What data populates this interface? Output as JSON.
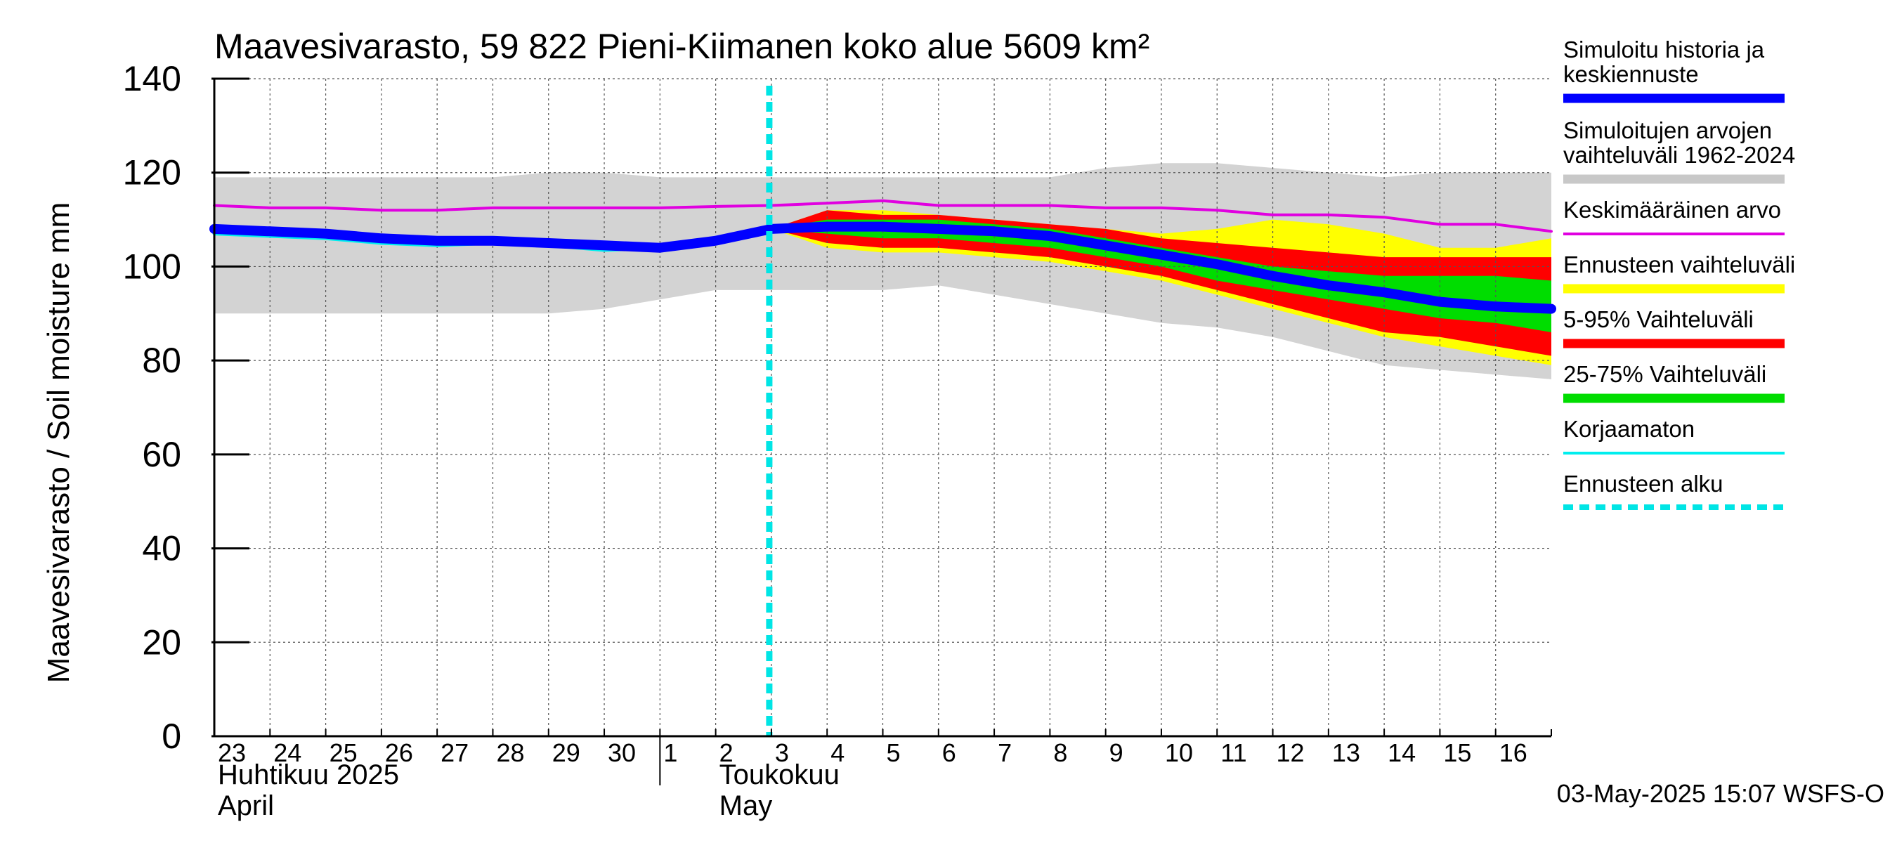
{
  "chart_data": {
    "type": "area",
    "title": "Maavesivarasto, 59 822 Pieni-Kiimanen koko alue 5609 km²",
    "ylabel": "Maavesivarasto / Soil moisture   mm",
    "ylim": [
      0,
      140
    ],
    "yticks": [
      0,
      20,
      40,
      60,
      80,
      100,
      120,
      140
    ],
    "ytick_labels": [
      "0",
      "20",
      "40",
      "60",
      "80",
      "100",
      "120",
      "140"
    ],
    "x_start_day_index": 0,
    "day_labels": [
      "23",
      "24",
      "25",
      "26",
      "27",
      "28",
      "29",
      "30",
      "1",
      "2",
      "3",
      "4",
      "5",
      "6",
      "7",
      "8",
      "9",
      "10",
      "11",
      "12",
      "13",
      "14",
      "15",
      "16"
    ],
    "month_labels": [
      {
        "fi": "Huhtikuu  2025",
        "en": "April",
        "day_index": 0
      },
      {
        "fi": "Toukokuu",
        "en": "May",
        "day_index": 9
      }
    ],
    "month_boundary_day_index": 8,
    "forecast_start_day_index": 10,
    "x_range": [
      0,
      24
    ],
    "timestamp": "03-May-2025 15:07 WSFS-O",
    "legend": [
      {
        "label": "Simuloitu historia ja\nkeskiennuste",
        "color": "#0000ff",
        "style": "thick"
      },
      {
        "label": "Simuloitujen arvojen\nvaihteluväli 1962-2024",
        "color": "#c8c8c8",
        "style": "thick"
      },
      {
        "label": "Keskimääräinen arvo",
        "color": "#e000e0",
        "style": "thin"
      },
      {
        "label": "Ennusteen vaihteluväli",
        "color": "#ffff00",
        "style": "thick"
      },
      {
        "label": "5-95% Vaihteluväli",
        "color": "#ff0000",
        "style": "thick"
      },
      {
        "label": "25-75% Vaihteluväli",
        "color": "#00dd00",
        "style": "thick"
      },
      {
        "label": "Korjaamaton",
        "color": "#00eeee",
        "style": "thin"
      },
      {
        "label": "Ennusteen alku",
        "color": "#00e5e5",
        "style": "dashed"
      }
    ],
    "series": {
      "hist_range": {
        "x": [
          0,
          1,
          2,
          3,
          4,
          5,
          6,
          7,
          8,
          9,
          10,
          11,
          12,
          13,
          14,
          15,
          16,
          17,
          18,
          19,
          20,
          21,
          22,
          23,
          24
        ],
        "upper": [
          119,
          119,
          119,
          119,
          119,
          119,
          120,
          120,
          119,
          119,
          119,
          119,
          119,
          119,
          119,
          119,
          121,
          122,
          122,
          121,
          120,
          119,
          120,
          120,
          120
        ],
        "lower": [
          90,
          90,
          90,
          90,
          90,
          90,
          90,
          91,
          93,
          95,
          95,
          95,
          95,
          96,
          94,
          92,
          90,
          88,
          87,
          85,
          82,
          79,
          78,
          77,
          76
        ]
      },
      "forecast_range": {
        "x": [
          10,
          11,
          12,
          13,
          14,
          15,
          16,
          17,
          18,
          19,
          20,
          21,
          22,
          23,
          24
        ],
        "upper": [
          108,
          112,
          112,
          111,
          110,
          109,
          108,
          107,
          108,
          110,
          109,
          107,
          104,
          104,
          106
        ],
        "lower": [
          108,
          104,
          103,
          103,
          102,
          101,
          99,
          97,
          94,
          91,
          88,
          85,
          83,
          81,
          79
        ]
      },
      "p5_95": {
        "x": [
          10,
          11,
          12,
          13,
          14,
          15,
          16,
          17,
          18,
          19,
          20,
          21,
          22,
          23,
          24
        ],
        "upper": [
          108,
          112,
          111,
          111,
          110,
          109,
          108,
          106,
          105,
          104,
          103,
          102,
          102,
          102,
          102
        ],
        "lower": [
          108,
          105,
          104,
          104,
          103,
          102,
          100,
          98,
          95,
          92,
          89,
          86,
          85,
          83,
          81
        ]
      },
      "p25_75": {
        "x": [
          10,
          11,
          12,
          13,
          14,
          15,
          16,
          17,
          18,
          19,
          20,
          21,
          22,
          23,
          24
        ],
        "upper": [
          108,
          110,
          110,
          110,
          109,
          108,
          106,
          104,
          102,
          100,
          99,
          98,
          98,
          98,
          97
        ],
        "lower": [
          108,
          107,
          106,
          106,
          105,
          104,
          102,
          100,
          97,
          95,
          93,
          91,
          89,
          88,
          86
        ]
      },
      "mean": {
        "x": [
          0,
          1,
          2,
          3,
          4,
          5,
          6,
          7,
          8,
          9,
          10,
          11,
          12,
          13,
          14,
          15,
          16,
          17,
          18,
          19,
          20,
          21,
          22,
          23,
          24
        ],
        "y": [
          113,
          112.5,
          112.5,
          112,
          112,
          112.5,
          112.5,
          112.5,
          112.5,
          112.8,
          113,
          113.5,
          114,
          113,
          113,
          113,
          112.5,
          112.5,
          112,
          111,
          111,
          110.5,
          109,
          109,
          107.5
        ]
      },
      "uncorrected": {
        "x": [
          0,
          1,
          2,
          3,
          4,
          5,
          6,
          7,
          8,
          9,
          10
        ],
        "y": [
          107,
          106.5,
          106,
          105,
          104.5,
          105,
          104.5,
          103.5,
          104,
          105.5,
          108
        ]
      },
      "main": {
        "x": [
          0,
          1,
          2,
          3,
          4,
          5,
          6,
          7,
          8,
          9,
          10,
          11,
          12,
          13,
          14,
          15,
          16,
          17,
          18,
          19,
          20,
          21,
          22,
          23,
          24
        ],
        "y": [
          108,
          107.5,
          107,
          106,
          105.5,
          105.5,
          105,
          104.5,
          104,
          105.5,
          108,
          108.5,
          108.5,
          108,
          107.5,
          106.5,
          104.5,
          102.5,
          100.5,
          98,
          96,
          94.5,
          92.5,
          91.5,
          91
        ]
      }
    }
  }
}
